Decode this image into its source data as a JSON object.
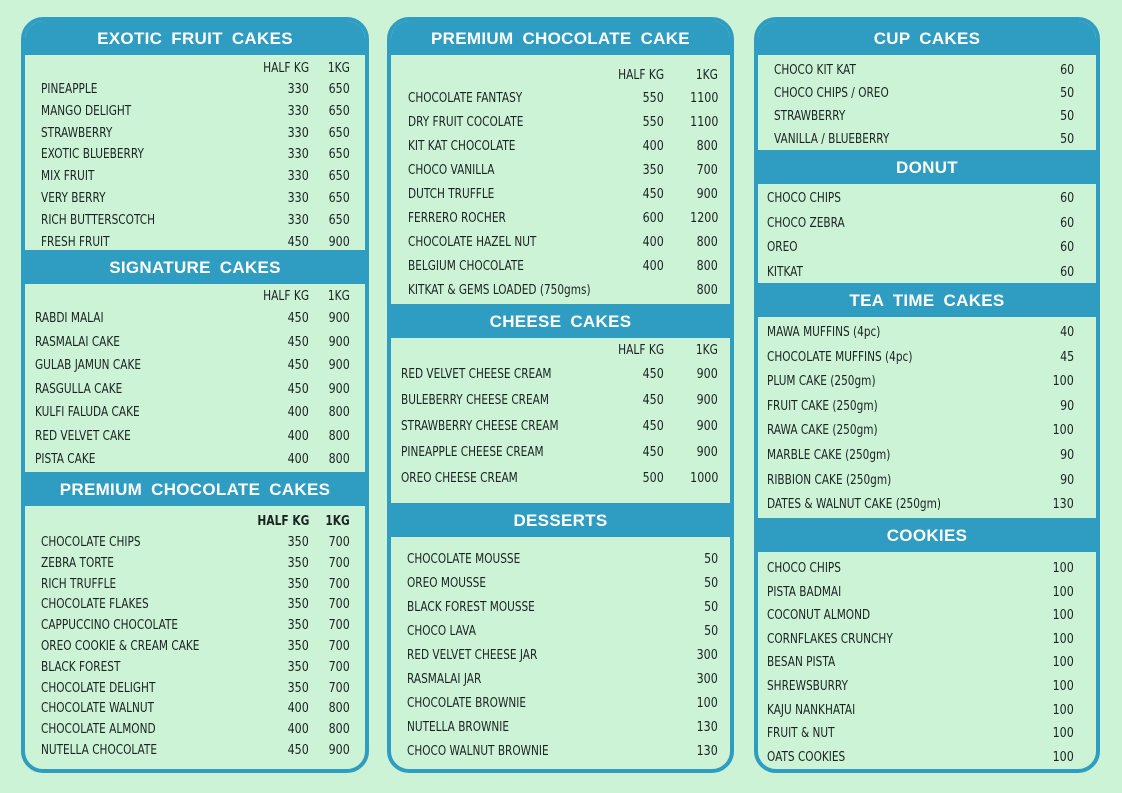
{
  "col_headers": {
    "half": "HALF KG",
    "full": "1KG"
  },
  "colors": {
    "background": "#cdf3d6",
    "accent": "#2f9cc2",
    "header_text": "#ffffff",
    "item_text": "#1a2322"
  },
  "sections": {
    "exotic_fruit": {
      "title": "EXOTIC FRUIT CAKES",
      "items": [
        {
          "name": "PINEAPPLE",
          "half": "330",
          "full": "650"
        },
        {
          "name": "MANGO DELIGHT",
          "half": "330",
          "full": "650"
        },
        {
          "name": "STRAWBERRY",
          "half": "330",
          "full": "650"
        },
        {
          "name": "EXOTIC BLUEBERRY",
          "half": "330",
          "full": "650"
        },
        {
          "name": "MIX FRUIT",
          "half": "330",
          "full": "650"
        },
        {
          "name": "VERY BERRY",
          "half": "330",
          "full": "650"
        },
        {
          "name": "RICH BUTTERSCOTCH",
          "half": "330",
          "full": "650"
        },
        {
          "name": "FRESH FRUIT",
          "half": "450",
          "full": "900"
        }
      ]
    },
    "signature": {
      "title": "SIGNATURE CAKES",
      "items": [
        {
          "name": "RABDI MALAI",
          "half": "450",
          "full": "900"
        },
        {
          "name": "RASMALAI CAKE",
          "half": "450",
          "full": "900"
        },
        {
          "name": "GULAB JAMUN CAKE",
          "half": "450",
          "full": "900"
        },
        {
          "name": "RASGULLA CAKE",
          "half": "450",
          "full": "900"
        },
        {
          "name": "KULFI FALUDA CAKE",
          "half": "400",
          "full": "800"
        },
        {
          "name": "RED VELVET CAKE",
          "half": "400",
          "full": "800"
        },
        {
          "name": "PISTA CAKE",
          "half": "400",
          "full": "800"
        }
      ]
    },
    "premium_chocolate_cakes": {
      "title": "PREMIUM CHOCOLATE CAKES",
      "items": [
        {
          "name": "CHOCOLATE CHIPS",
          "half": "350",
          "full": "700"
        },
        {
          "name": "ZEBRA TORTE",
          "half": "350",
          "full": "700"
        },
        {
          "name": "RICH TRUFFLE",
          "half": "350",
          "full": "700"
        },
        {
          "name": "CHOCOLATE FLAKES",
          "half": "350",
          "full": "700"
        },
        {
          "name": "CAPPUCCINO CHOCOLATE",
          "half": "350",
          "full": "700"
        },
        {
          "name": "OREO COOKIE & CREAM CAKE",
          "half": "350",
          "full": "700"
        },
        {
          "name": "BLACK FOREST",
          "half": "350",
          "full": "700"
        },
        {
          "name": "CHOCOLATE DELIGHT",
          "half": "350",
          "full": "700"
        },
        {
          "name": "CHOCOLATE WALNUT",
          "half": "400",
          "full": "800"
        },
        {
          "name": "CHOCOLATE ALMOND",
          "half": "400",
          "full": "800"
        },
        {
          "name": "NUTELLA CHOCOLATE",
          "half": "450",
          "full": "900"
        }
      ]
    },
    "premium_chocolate_cake": {
      "title": "PREMIUM CHOCOLATE CAKE",
      "items": [
        {
          "name": "CHOCOLATE FANTASY",
          "half": "550",
          "full": "1100"
        },
        {
          "name": "DRY FRUIT COCOLATE",
          "half": "550",
          "full": "1100"
        },
        {
          "name": "KIT KAT CHOCOLATE",
          "half": "400",
          "full": "800"
        },
        {
          "name": "CHOCO VANILLA",
          "half": "350",
          "full": "700"
        },
        {
          "name": "DUTCH TRUFFLE",
          "half": "450",
          "full": "900"
        },
        {
          "name": "FERRERO ROCHER",
          "half": "600",
          "full": "1200"
        },
        {
          "name": "CHOCOLATE HAZEL NUT",
          "half": "400",
          "full": "800"
        },
        {
          "name": "BELGIUM CHOCOLATE",
          "half": "400",
          "full": "800"
        },
        {
          "name": "KITKAT & GEMS LOADED (750gms)",
          "half": "",
          "full": "800"
        }
      ]
    },
    "cheese": {
      "title": "CHEESE CAKES",
      "items": [
        {
          "name": "RED VELVET CHEESE CREAM",
          "half": "450",
          "full": "900"
        },
        {
          "name": "BULEBERRY CHEESE CREAM",
          "half": "450",
          "full": "900"
        },
        {
          "name": "STRAWBERRY CHEESE CREAM",
          "half": "450",
          "full": "900"
        },
        {
          "name": "PINEAPPLE CHEESE CREAM",
          "half": "450",
          "full": "900"
        },
        {
          "name": "OREO CHEESE CREAM",
          "half": "500",
          "full": "1000"
        }
      ]
    },
    "desserts": {
      "title": "DESSERTS",
      "items": [
        {
          "name": "CHOCOLATE MOUSSE",
          "price": "50"
        },
        {
          "name": "OREO MOUSSE",
          "price": "50"
        },
        {
          "name": "BLACK FOREST MOUSSE",
          "price": "50"
        },
        {
          "name": "CHOCO LAVA",
          "price": "50"
        },
        {
          "name": "RED VELVET CHEESE JAR",
          "price": "300"
        },
        {
          "name": "RASMALAI JAR",
          "price": "300"
        },
        {
          "name": "CHOCOLATE BROWNIE",
          "price": "100"
        },
        {
          "name": "NUTELLA BROWNIE",
          "price": "130"
        },
        {
          "name": "CHOCO WALNUT BROWNIE",
          "price": "130"
        }
      ]
    },
    "cup_cakes": {
      "title": "CUP CAKES",
      "items": [
        {
          "name": "CHOCO KIT KAT",
          "price": "60"
        },
        {
          "name": "CHOCO CHIPS / OREO",
          "price": "50"
        },
        {
          "name": "STRAWBERRY",
          "price": "50"
        },
        {
          "name": "VANILLA / BLUEBERRY",
          "price": "50"
        }
      ]
    },
    "donut": {
      "title": "DONUT",
      "items": [
        {
          "name": "CHOCO CHIPS",
          "price": "60"
        },
        {
          "name": "CHOCO ZEBRA",
          "price": "60"
        },
        {
          "name": "OREO",
          "price": "60"
        },
        {
          "name": "KITKAT",
          "price": "60"
        }
      ]
    },
    "tea_time": {
      "title": "TEA TIME CAKES",
      "items": [
        {
          "name": "MAWA MUFFINS (4pc)",
          "price": "40"
        },
        {
          "name": "CHOCOLATE MUFFINS (4pc)",
          "price": "45"
        },
        {
          "name": "PLUM CAKE (250gm)",
          "price": "100"
        },
        {
          "name": "FRUIT CAKE (250gm)",
          "price": "90"
        },
        {
          "name": "RAWA CAKE (250gm)",
          "price": "100"
        },
        {
          "name": "MARBLE CAKE (250gm)",
          "price": "90"
        },
        {
          "name": "RIBBION CAKE (250gm)",
          "price": "90"
        },
        {
          "name": "DATES & WALNUT CAKE (250gm)",
          "price": "130"
        }
      ]
    },
    "cookies": {
      "title": "COOKIES",
      "items": [
        {
          "name": "CHOCO CHIPS",
          "price": "100"
        },
        {
          "name": "PISTA BADMAI",
          "price": "100"
        },
        {
          "name": "COCONUT ALMOND",
          "price": "100"
        },
        {
          "name": "CORNFLAKES CRUNCHY",
          "price": "100"
        },
        {
          "name": "BESAN PISTA",
          "price": "100"
        },
        {
          "name": "SHREWSBURRY",
          "price": "100"
        },
        {
          "name": "KAJU NANKHATAI",
          "price": "100"
        },
        {
          "name": "FRUIT & NUT",
          "price": "100"
        },
        {
          "name": "OATS COOKIES",
          "price": "100"
        }
      ]
    }
  }
}
